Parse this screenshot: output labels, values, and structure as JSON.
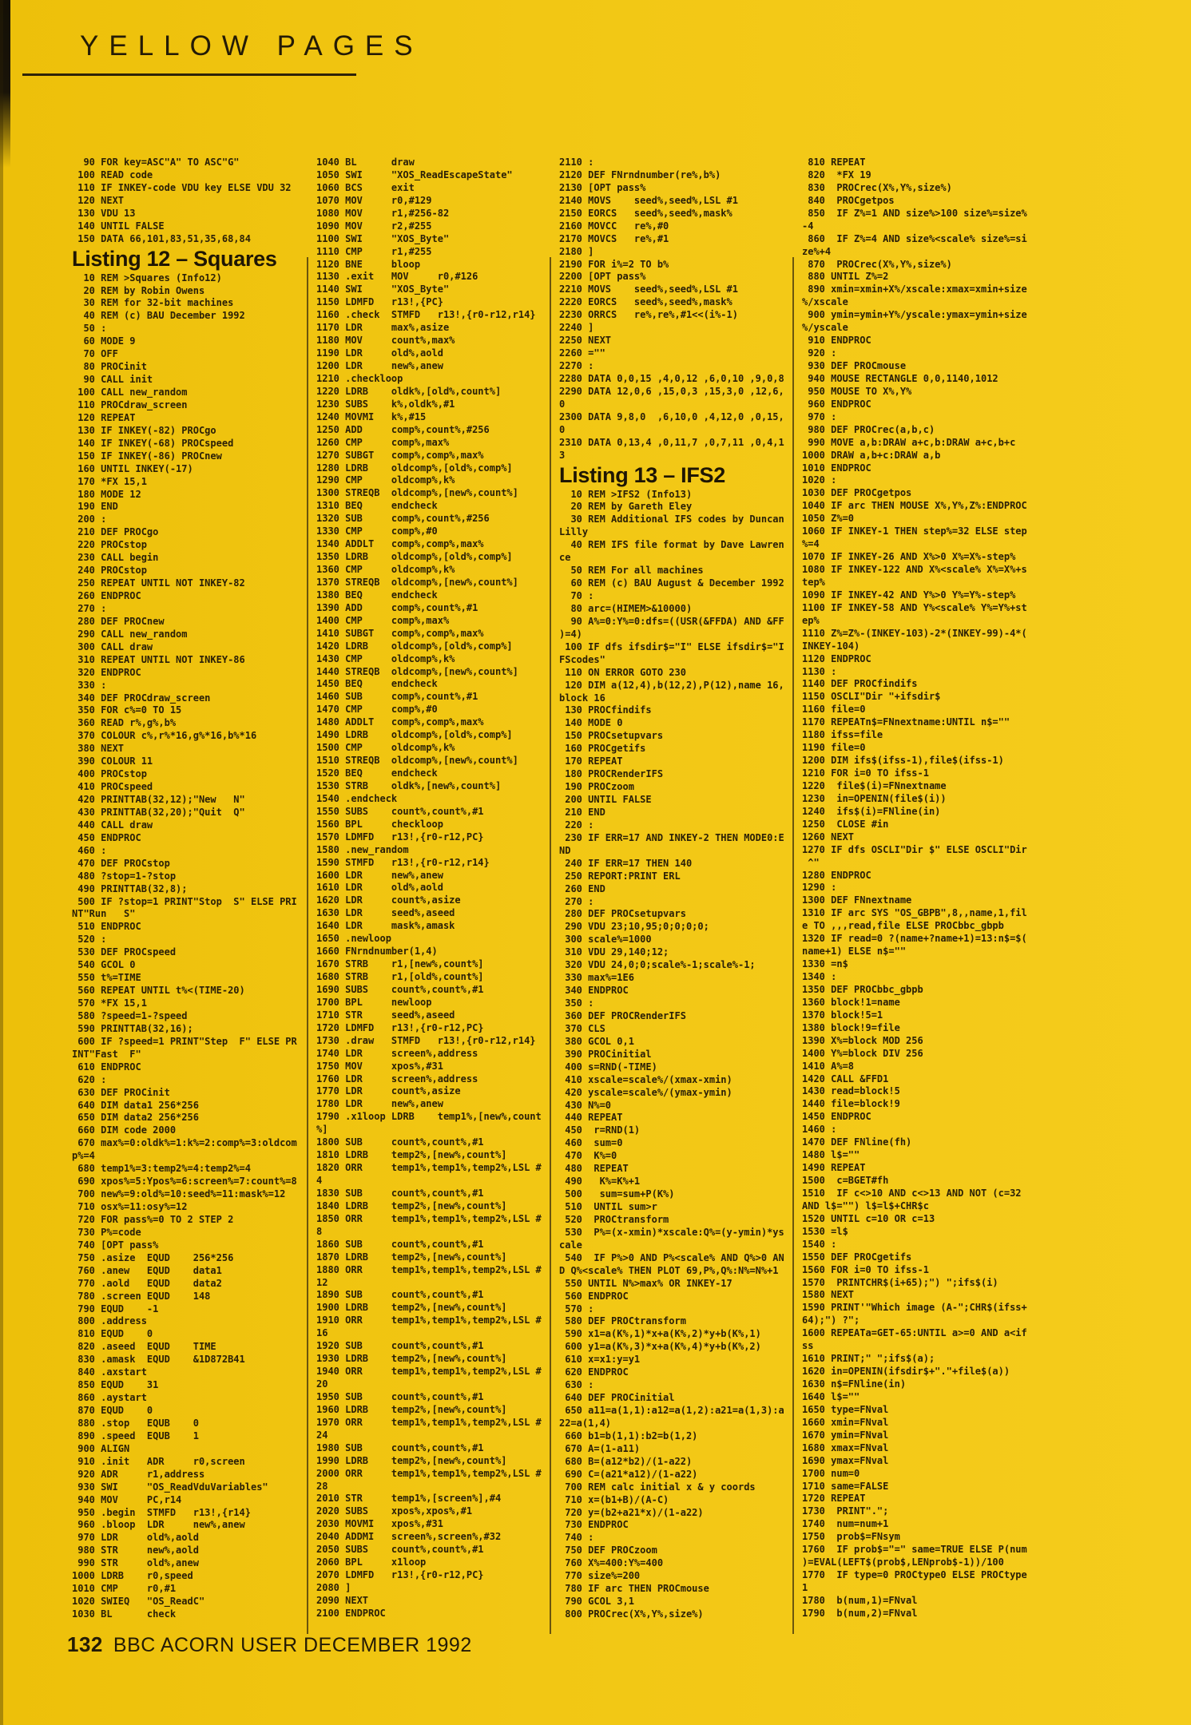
{
  "colors": {
    "paper_yellow": "#f2c714",
    "ink": "#2b2007",
    "rule": "#3e2f0c"
  },
  "header": {
    "title": "YELLOW PAGES"
  },
  "footer": {
    "page_number": "132",
    "text": "BBC ACORN USER DECEMBER 1992"
  },
  "columns": [
    {
      "blocks": [
        {
          "type": "code",
          "lines": [
            "  90 FOR key=ASC\"A\" TO ASC\"G\"",
            " 100 READ code",
            " 110 IF INKEY-code VDU key ELSE VDU 32",
            " 120 NEXT",
            " 130 VDU 13",
            " 140 UNTIL FALSE",
            " 150 DATA 66,101,83,51,35,68,84"
          ]
        },
        {
          "type": "heading",
          "text": "Listing 12 – Squares"
        },
        {
          "type": "code",
          "lines": [
            "  10 REM >Squares (Info12)",
            "  20 REM by Robin Owens",
            "  30 REM for 32-bit machines",
            "  40 REM (c) BAU December 1992",
            "  50 :",
            "  60 MODE 9",
            "  70 OFF",
            "  80 PROCinit",
            "  90 CALL init",
            " 100 CALL new_random",
            " 110 PROCdraw_screen",
            " 120 REPEAT",
            " 130 IF INKEY(-82) PROCgo",
            " 140 IF INKEY(-68) PROCspeed",
            " 150 IF INKEY(-86) PROCnew",
            " 160 UNTIL INKEY(-17)",
            " 170 *FX 15,1",
            " 180 MODE 12",
            " 190 END",
            " 200 :",
            " 210 DEF PROCgo",
            " 220 PROCstop",
            " 230 CALL begin",
            " 240 PROCstop",
            " 250 REPEAT UNTIL NOT INKEY-82",
            " 260 ENDPROC",
            " 270 :",
            " 280 DEF PROCnew",
            " 290 CALL new_random",
            " 300 CALL draw",
            " 310 REPEAT UNTIL NOT INKEY-86",
            " 320 ENDPROC",
            " 330 :",
            " 340 DEF PROCdraw_screen",
            " 350 FOR c%=0 TO 15",
            " 360 READ r%,g%,b%",
            " 370 COLOUR c%,r%*16,g%*16,b%*16",
            " 380 NEXT",
            " 390 COLOUR 11",
            " 400 PROCstop",
            " 410 PROCspeed",
            " 420 PRINTTAB(32,12);\"New   N\"",
            " 430 PRINTTAB(32,20);\"Quit  Q\"",
            " 440 CALL draw",
            " 450 ENDPROC",
            " 460 :",
            " 470 DEF PROCstop",
            " 480 ?stop=1-?stop",
            " 490 PRINTTAB(32,8);",
            " 500 IF ?stop=1 PRINT\"Stop  S\" ELSE PRI",
            "NT\"Run   S\"",
            " 510 ENDPROC",
            " 520 :",
            " 530 DEF PROCspeed",
            " 540 GCOL 0",
            " 550 t%=TIME",
            " 560 REPEAT UNTIL t%<(TIME-20)",
            " 570 *FX 15,1",
            " 580 ?speed=1-?speed",
            " 590 PRINTTAB(32,16);",
            " 600 IF ?speed=1 PRINT\"Step  F\" ELSE PR",
            "INT\"Fast  F\"",
            " 610 ENDPROC",
            " 620 :",
            " 630 DEF PROCinit",
            " 640 DIM data1 256*256",
            " 650 DIM data2 256*256",
            " 660 DIM code 2000",
            " 670 max%=0:oldk%=1:k%=2:comp%=3:oldcom",
            "p%=4",
            " 680 temp1%=3:temp2%=4:temp2%=4",
            " 690 xpos%=5:Ypos%=6:screen%=7:count%=8",
            " 700 new%=9:old%=10:seed%=11:mask%=12",
            " 710 osx%=11:osy%=12",
            " 720 FOR pass%=0 TO 2 STEP 2",
            " 730 P%=code",
            " 740 [OPT pass%",
            " 750 .asize  EQUD    256*256",
            " 760 .anew   EQUD    data1",
            " 770 .aold   EQUD    data2",
            " 780 .screen EQUD    148",
            " 790 EQUD    -1",
            " 800 .address",
            " 810 EQUD    0",
            " 820 .aseed  EQUD    TIME",
            " 830 .amask  EQUD    &1D872B41",
            " 840 .axstart",
            " 850 EQUD    31",
            " 860 .aystart",
            " 870 EQUD    0",
            " 880 .stop   EQUB    0",
            " 890 .speed  EQUB    1",
            " 900 ALIGN",
            " 910 .init   ADR     r0,screen",
            " 920 ADR     r1,address",
            " 930 SWI     \"OS_ReadVduVariables\"",
            " 940 MOV     PC,r14",
            " 950 .begin  STMFD   r13!,{r14}",
            " 960 .bloop  LDR     new%,anew",
            " 970 LDR     old%,aold",
            " 980 STR     new%,aold",
            " 990 STR     old%,anew",
            "1000 LDRB    r0,speed",
            "1010 CMP     r0,#1",
            "1020 SWIEQ   \"OS_ReadC\"",
            "1030 BL      check"
          ]
        }
      ]
    },
    {
      "blocks": [
        {
          "type": "code",
          "lines": [
            "1040 BL      draw",
            "1050 SWI     \"XOS_ReadEscapeState\"",
            "1060 BCS     exit",
            "1070 MOV     r0,#129",
            "1080 MOV     r1,#256-82",
            "1090 MOV     r2,#255",
            "1100 SWI     \"XOS_Byte\"",
            "1110 CMP     r1,#255",
            "1120 BNE     bloop",
            "1130 .exit   MOV     r0,#126",
            "1140 SWI     \"XOS_Byte\"",
            "1150 LDMFD   r13!,{PC}",
            "1160 .check  STMFD   r13!,{r0-r12,r14}",
            "1170 LDR     max%,asize",
            "1180 MOV     count%,max%",
            "1190 LDR     old%,aold",
            "1200 LDR     new%,anew",
            "1210 .checkloop",
            "1220 LDRB    oldk%,[old%,count%]",
            "1230 SUBS    k%,oldk%,#1",
            "1240 MOVMI   k%,#15",
            "1250 ADD     comp%,count%,#256",
            "1260 CMP     comp%,max%",
            "1270 SUBGT   comp%,comp%,max%",
            "1280 LDRB    oldcomp%,[old%,comp%]",
            "1290 CMP     oldcomp%,k%",
            "1300 STREQB  oldcomp%,[new%,count%]",
            "1310 BEQ     endcheck",
            "1320 SUB     comp%,count%,#256",
            "1330 CMP     comp%,#0",
            "1340 ADDLT   comp%,comp%,max%",
            "1350 LDRB    oldcomp%,[old%,comp%]",
            "1360 CMP     oldcomp%,k%",
            "1370 STREQB  oldcomp%,[new%,count%]",
            "1380 BEQ     endcheck",
            "1390 ADD     comp%,count%,#1",
            "1400 CMP     comp%,max%",
            "1410 SUBGT   comp%,comp%,max%",
            "1420 LDRB    oldcomp%,[old%,comp%]",
            "1430 CMP     oldcomp%,k%",
            "1440 STREQB  oldcomp%,[new%,count%]",
            "1450 BEQ     endcheck",
            "1460 SUB     comp%,count%,#1",
            "1470 CMP     comp%,#0",
            "1480 ADDLT   comp%,comp%,max%",
            "1490 LDRB    oldcomp%,[old%,comp%]",
            "1500 CMP     oldcomp%,k%",
            "1510 STREQB  oldcomp%,[new%,count%]",
            "1520 BEQ     endcheck",
            "1530 STRB    oldk%,[new%,count%]",
            "1540 .endcheck",
            "1550 SUBS    count%,count%,#1",
            "1560 BPL     checkloop",
            "1570 LDMFD   r13!,{r0-r12,PC}",
            "1580 .new_random",
            "1590 STMFD   r13!,{r0-r12,r14}",
            "1600 LDR     new%,anew",
            "1610 LDR     old%,aold",
            "1620 LDR     count%,asize",
            "1630 LDR     seed%,aseed",
            "1640 LDR     mask%,amask",
            "1650 .newloop",
            "1660 FNrndnumber(1,4)",
            "1670 STRB    r1,[new%,count%]",
            "1680 STRB    r1,[old%,count%]",
            "1690 SUBS    count%,count%,#1",
            "1700 BPL     newloop",
            "1710 STR     seed%,aseed",
            "1720 LDMFD   r13!,{r0-r12,PC}",
            "1730 .draw   STMFD   r13!,{r0-r12,r14}",
            "1740 LDR     screen%,address",
            "1750 MOV     xpos%,#31",
            "1760 LDR     screen%,address",
            "1770 LDR     count%,asize",
            "1780 LDR     new%,anew",
            "1790 .x1loop LDRB    temp1%,[new%,count",
            "%]",
            "1800 SUB     count%,count%,#1",
            "1810 LDRB    temp2%,[new%,count%]",
            "1820 ORR     temp1%,temp1%,temp2%,LSL #",
            "4",
            "1830 SUB     count%,count%,#1",
            "1840 LDRB    temp2%,[new%,count%]",
            "1850 ORR     temp1%,temp1%,temp2%,LSL #",
            "8",
            "1860 SUB     count%,count%,#1",
            "1870 LDRB    temp2%,[new%,count%]",
            "1880 ORR     temp1%,temp1%,temp2%,LSL #",
            "12",
            "1890 SUB     count%,count%,#1",
            "1900 LDRB    temp2%,[new%,count%]",
            "1910 ORR     temp1%,temp1%,temp2%,LSL #",
            "16",
            "1920 SUB     count%,count%,#1",
            "1930 LDRB    temp2%,[new%,count%]",
            "1940 ORR     temp1%,temp1%,temp2%,LSL #",
            "20",
            "1950 SUB     count%,count%,#1",
            "1960 LDRB    temp2%,[new%,count%]",
            "1970 ORR     temp1%,temp1%,temp2%,LSL #",
            "24",
            "1980 SUB     count%,count%,#1",
            "1990 LDRB    temp2%,[new%,count%]",
            "2000 ORR     temp1%,temp1%,temp2%,LSL #",
            "28",
            "2010 STR     temp1%,[screen%],#4",
            "2020 SUBS    xpos%,xpos%,#1",
            "2030 MOVMI   xpos%,#31",
            "2040 ADDMI   screen%,screen%,#32",
            "2050 SUBS    count%,count%,#1",
            "2060 BPL     x1loop",
            "2070 LDMFD   r13!,{r0-r12,PC}",
            "2080 ]",
            "2090 NEXT",
            "2100 ENDPROC"
          ]
        }
      ]
    },
    {
      "blocks": [
        {
          "type": "code",
          "lines": [
            "2110 :",
            "2120 DEF FNrndnumber(re%,b%)",
            "2130 [OPT pass%",
            "2140 MOVS    seed%,seed%,LSL #1",
            "2150 EORCS   seed%,seed%,mask%",
            "2160 MOVCC   re%,#0",
            "2170 MOVCS   re%,#1",
            "2180 ]",
            "2190 FOR i%=2 TO b%",
            "2200 [OPT pass%",
            "2210 MOVS    seed%,seed%,LSL #1",
            "2220 EORCS   seed%,seed%,mask%",
            "2230 ORRCS   re%,re%,#1<<(i%-1)",
            "2240 ]",
            "2250 NEXT",
            "2260 =\"\"",
            "2270 :",
            "2280 DATA 0,0,15 ,4,0,12 ,6,0,10 ,9,0,8",
            "2290 DATA 12,0,6 ,15,0,3 ,15,3,0 ,12,6,",
            "0",
            "2300 DATA 9,8,0  ,6,10,0 ,4,12,0 ,0,15,",
            "0",
            "2310 DATA 0,13,4 ,0,11,7 ,0,7,11 ,0,4,1",
            "3"
          ]
        },
        {
          "type": "heading",
          "text": "Listing 13 – IFS2"
        },
        {
          "type": "code",
          "lines": [
            "  10 REM >IFS2 (Info13)",
            "  20 REM by Gareth Eley",
            "  30 REM Additional IFS codes by Duncan",
            "Lilly",
            "  40 REM IFS file format by Dave Lawren",
            "ce",
            "  50 REM For all machines",
            "  60 REM (c) BAU August & December 1992",
            "  70 :",
            "  80 arc=(HIMEM>&10000)",
            "  90 A%=0:Y%=0:dfs=((USR(&FFDA) AND &FF",
            ")=4)",
            " 100 IF dfs ifsdir$=\"I\" ELSE ifsdir$=\"I",
            "FScodes\"",
            " 110 ON ERROR GOTO 230",
            " 120 DIM a(12,4),b(12,2),P(12),name 16,",
            "block 16",
            " 130 PROCfindifs",
            " 140 MODE 0",
            " 150 PROCsetupvars",
            " 160 PROCgetifs",
            " 170 REPEAT",
            " 180 PROCRenderIFS",
            " 190 PROCzoom",
            " 200 UNTIL FALSE",
            " 210 END",
            " 220 :",
            " 230 IF ERR=17 AND INKEY-2 THEN MODE0:E",
            "ND",
            " 240 IF ERR=17 THEN 140",
            " 250 REPORT:PRINT ERL",
            " 260 END",
            " 270 :",
            " 280 DEF PROCsetupvars",
            " 290 VDU 23;10,95;0;0;0;0;",
            " 300 scale%=1000",
            " 310 VDU 29,140;12;",
            " 320 VDU 24,0;0;scale%-1;scale%-1;",
            " 330 max%=1E6",
            " 340 ENDPROC",
            " 350 :",
            " 360 DEF PROCRenderIFS",
            " 370 CLS",
            " 380 GCOL 0,1",
            " 390 PROCinitial",
            " 400 s=RND(-TIME)",
            " 410 xscale=scale%/(xmax-xmin)",
            " 420 yscale=scale%/(ymax-ymin)",
            " 430 N%=0",
            " 440 REPEAT",
            " 450  r=RND(1)",
            " 460  sum=0",
            " 470  K%=0",
            " 480  REPEAT",
            " 490   K%=K%+1",
            " 500   sum=sum+P(K%)",
            " 510  UNTIL sum>r",
            " 520  PROCtransform",
            " 530  P%=(x-xmin)*xscale:Q%=(y-ymin)*ys",
            "cale",
            " 540  IF P%>0 AND P%<scale% AND Q%>0 AN",
            "D Q%<scale% THEN PLOT 69,P%,Q%:N%=N%+1",
            " 550 UNTIL N%>max% OR INKEY-17",
            " 560 ENDPROC",
            " 570 :",
            " 580 DEF PROCtransform",
            " 590 x1=a(K%,1)*x+a(K%,2)*y+b(K%,1)",
            " 600 y1=a(K%,3)*x+a(K%,4)*y+b(K%,2)",
            " 610 x=x1:y=y1",
            " 620 ENDPROC",
            " 630 :",
            " 640 DEF PROCinitial",
            " 650 a11=a(1,1):a12=a(1,2):a21=a(1,3):a",
            "22=a(1,4)",
            " 660 b1=b(1,1):b2=b(1,2)",
            " 670 A=(1-a11)",
            " 680 B=(a12*b2)/(1-a22)",
            " 690 C=(a21*a12)/(1-a22)",
            " 700 REM calc initial x & y coords",
            " 710 x=(b1+B)/(A-C)",
            " 720 y=(b2+a21*x)/(1-a22)",
            " 730 ENDPROC",
            " 740 :",
            " 750 DEF PROCzoom",
            " 760 X%=400:Y%=400",
            " 770 size%=200",
            " 780 IF arc THEN PROCmouse",
            " 790 GCOL 3,1",
            " 800 PROCrec(X%,Y%,size%)"
          ]
        }
      ]
    },
    {
      "blocks": [
        {
          "type": "code",
          "lines": [
            " 810 REPEAT",
            " 820  *FX 19",
            " 830  PROCrec(X%,Y%,size%)",
            " 840  PROCgetpos",
            " 850  IF Z%=1 AND size%>100 size%=size%",
            "-4",
            " 860  IF Z%=4 AND size%<scale% size%=si",
            "ze%+4",
            " 870  PROCrec(X%,Y%,size%)",
            " 880 UNTIL Z%=2",
            " 890 xmin=xmin+X%/xscale:xmax=xmin+size",
            "%/xscale",
            " 900 ymin=ymin+Y%/yscale:ymax=ymin+size",
            "%/yscale",
            " 910 ENDPROC",
            " 920 :",
            " 930 DEF PROCmouse",
            " 940 MOUSE RECTANGLE 0,0,1140,1012",
            " 950 MOUSE TO X%,Y%",
            " 960 ENDPROC",
            " 970 :",
            " 980 DEF PROCrec(a,b,c)",
            " 990 MOVE a,b:DRAW a+c,b:DRAW a+c,b+c",
            "1000 DRAW a,b+c:DRAW a,b",
            "1010 ENDPROC",
            "1020 :",
            "1030 DEF PROCgetpos",
            "1040 IF arc THEN MOUSE X%,Y%,Z%:ENDPROC",
            "1050 Z%=0",
            "1060 IF INKEY-1 THEN step%=32 ELSE step",
            "%=4",
            "1070 IF INKEY-26 AND X%>0 X%=X%-step%",
            "1080 IF INKEY-122 AND X%<scale% X%=X%+s",
            "tep%",
            "1090 IF INKEY-42 AND Y%>0 Y%=Y%-step%",
            "1100 IF INKEY-58 AND Y%<scale% Y%=Y%+st",
            "ep%",
            "1110 Z%=Z%-(INKEY-103)-2*(INKEY-99)-4*(",
            "INKEY-104)",
            "1120 ENDPROC",
            "1130 :",
            "1140 DEF PROCfindifs",
            "1150 OSCLI\"Dir \"+ifsdir$",
            "1160 file=0",
            "1170 REPEATn$=FNnextname:UNTIL n$=\"\"",
            "1180 ifss=file",
            "1190 file=0",
            "1200 DIM ifs$(ifss-1),file$(ifss-1)",
            "1210 FOR i=0 TO ifss-1",
            "1220  file$(i)=FNnextname",
            "1230  in=OPENIN(file$(i))",
            "1240  ifs$(i)=FNline(in)",
            "1250  CLOSE #in",
            "1260 NEXT",
            "1270 IF dfs OSCLI\"Dir $\" ELSE OSCLI\"Dir",
            " ^\"",
            "1280 ENDPROC",
            "1290 :",
            "1300 DEF FNnextname",
            "1310 IF arc SYS \"OS_GBPB\",8,,name,1,fil",
            "e TO ,,,read,file ELSE PROCbbc_gbpb",
            "1320 IF read=0 ?(name+?name+1)=13:n$=$(",
            "name+1) ELSE n$=\"\"",
            "1330 =n$",
            "1340 :",
            "1350 DEF PROCbbc_gbpb",
            "1360 block!1=name",
            "1370 block!5=1",
            "1380 block!9=file",
            "1390 X%=block MOD 256",
            "1400 Y%=block DIV 256",
            "1410 A%=8",
            "1420 CALL &FFD1",
            "1430 read=block!5",
            "1440 file=block!9",
            "1450 ENDPROC",
            "1460 :",
            "1470 DEF FNline(fh)",
            "1480 l$=\"\"",
            "1490 REPEAT",
            "1500  c=BGET#fh",
            "1510  IF c<>10 AND c<>13 AND NOT (c=32",
            "AND l$=\"\") l$=l$+CHR$c",
            "1520 UNTIL c=10 OR c=13",
            "1530 =l$",
            "1540 :",
            "1550 DEF PROCgetifs",
            "1560 FOR i=0 TO ifss-1",
            "1570  PRINTCHR$(i+65);\") \";ifs$(i)",
            "1580 NEXT",
            "1590 PRINT'\"Which image (A-\";CHR$(ifss+",
            "64);\") ?\";",
            "1600 REPEATa=GET-65:UNTIL a>=0 AND a<if",
            "ss",
            "1610 PRINT;\" \";ifs$(a);",
            "1620 in=OPENIN(ifsdir$+\".\"+file$(a))",
            "1630 n$=FNline(in)",
            "1640 l$=\"\"",
            "1650 type=FNval",
            "1660 xmin=FNval",
            "1670 ymin=FNval",
            "1680 xmax=FNval",
            "1690 ymax=FNval",
            "1700 num=0",
            "1710 same=FALSE",
            "1720 REPEAT",
            "1730  PRINT\".\";",
            "1740  num=num+1",
            "1750  prob$=FNsym",
            "1760  IF prob$=\"=\" same=TRUE ELSE P(num",
            ")=EVAL(LEFT$(prob$,LENprob$-1))/100",
            "1770  IF type=0 PROCtype0 ELSE PROCtype",
            "1",
            "1780  b(num,1)=FNval",
            "1790  b(num,2)=FNval"
          ]
        }
      ]
    }
  ]
}
